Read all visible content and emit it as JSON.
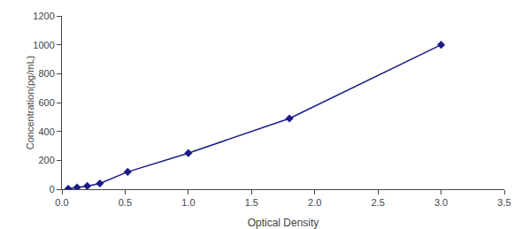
{
  "chart_data": {
    "type": "line",
    "x": [
      0.05,
      0.12,
      0.2,
      0.3,
      0.52,
      1.0,
      1.8,
      3.0
    ],
    "series": [
      {
        "color": "#1a1a8c",
        "marker": "diamond",
        "values": [
          3,
          12,
          22,
          40,
          120,
          250,
          490,
          1000
        ]
      }
    ],
    "xlabel": "Optical Density",
    "ylabel": "Concentration(pg/mL)",
    "xlim": [
      0,
      3.5
    ],
    "ylim": [
      0,
      1200
    ],
    "xticks": [
      {
        "value": 0,
        "label": "0.0"
      },
      0.5,
      {
        "value": 1.0,
        "label": "1.0"
      },
      1.5,
      {
        "value": 2.0,
        "label": "2.0"
      },
      2.5,
      {
        "value": 3.0,
        "label": "3.0"
      },
      3.5
    ],
    "yticks": [
      0,
      200,
      400,
      600,
      800,
      1000,
      1200
    ],
    "grid": false
  }
}
